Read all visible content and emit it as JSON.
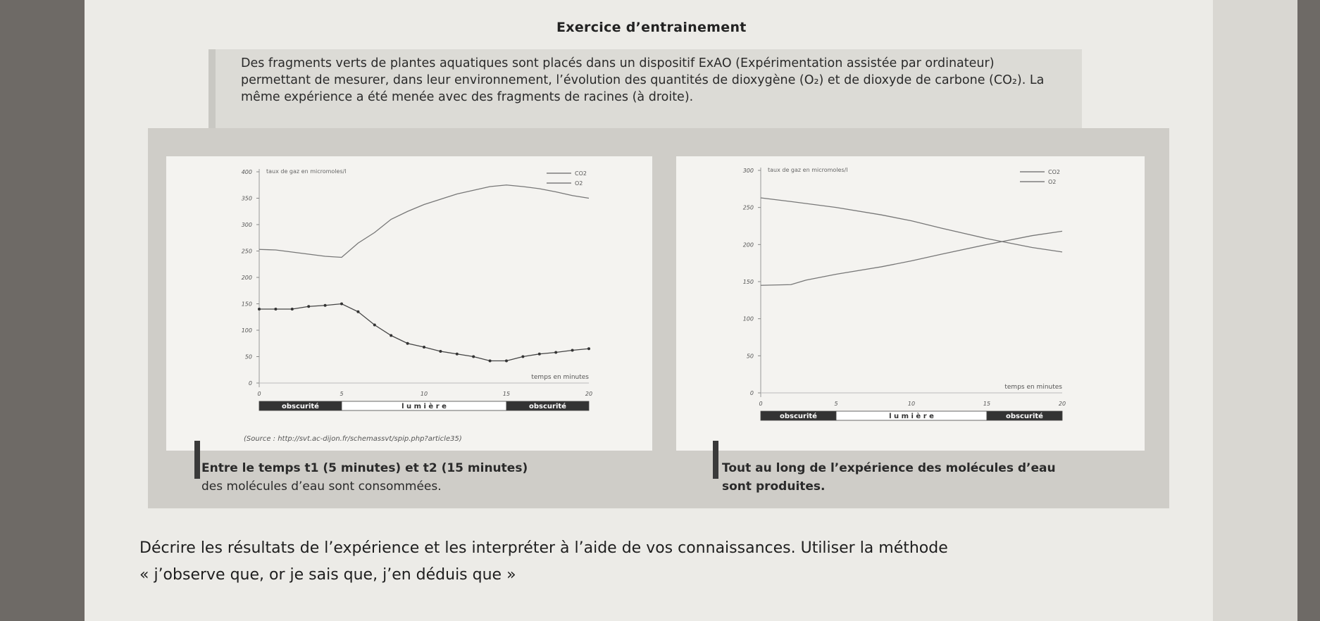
{
  "title": "Exercice d’entrainement",
  "intro": "Des fragments verts de plantes aquatiques sont placés dans un dispositif ExAO (Expérimentation assistée par ordinateur) permettant de mesurer, dans leur environnement, l’évolution des quantités de dioxygène (O₂) et de dioxyde de carbone (CO₂). La même expérience a été menée avec des fragments de racines (à droite).",
  "source": "(Source : http://svt.ac-dijon.fr/schemassvt/spip.php?article35)",
  "caption_left": [
    "Entre le temps t1 (5 minutes) et t2 (15 minutes)",
    "des molécules d’eau sont consommées."
  ],
  "caption_right": [
    "Tout au long de l’expérience des molécules d’eau",
    "sont produites."
  ],
  "question": [
    "Décrire les résultats de l’expérience et les interpréter à l’aide de vos connaissances. Utiliser la méthode",
    "« j’observe que, or je sais que, j’en déduis que »"
  ],
  "chart_data": [
    {
      "type": "line",
      "ylabel": "taux de gaz en micromoles/l",
      "xlabel": "temps en minutes",
      "ylim": [
        0,
        400
      ],
      "xlim": [
        0,
        20
      ],
      "y_ticks": [
        0,
        50,
        100,
        150,
        200,
        250,
        300,
        350,
        400
      ],
      "x_ticks": [
        0,
        5,
        10,
        15,
        20
      ],
      "legend": [
        "CO2",
        "O2"
      ],
      "legend_position": "top-right",
      "phases": [
        {
          "label": "obscurité",
          "from": 0,
          "to": 5,
          "color": "#333333"
        },
        {
          "label": "l u m i è r e",
          "from": 5,
          "to": 15,
          "color": "#ffffff"
        },
        {
          "label": "obscurité",
          "from": 15,
          "to": 20,
          "color": "#333333"
        }
      ],
      "series": [
        {
          "name": "CO2",
          "marker": true,
          "x": [
            0,
            1,
            2,
            3,
            4,
            5,
            6,
            7,
            8,
            9,
            10,
            11,
            12,
            13,
            14,
            15,
            16,
            17,
            18,
            19,
            20
          ],
          "y": [
            140,
            140,
            140,
            145,
            147,
            150,
            135,
            110,
            90,
            75,
            68,
            60,
            55,
            50,
            42,
            42,
            50,
            55,
            58,
            62,
            65
          ]
        },
        {
          "name": "O2",
          "marker": false,
          "x": [
            0,
            1,
            2,
            3,
            4,
            5,
            6,
            7,
            8,
            9,
            10,
            11,
            12,
            13,
            14,
            15,
            16,
            17,
            18,
            19,
            20
          ],
          "y": [
            253,
            252,
            248,
            244,
            240,
            238,
            265,
            285,
            310,
            325,
            338,
            348,
            358,
            365,
            372,
            375,
            372,
            368,
            362,
            355,
            350
          ]
        }
      ]
    },
    {
      "type": "line",
      "ylabel": "taux de gaz en micromoles/l",
      "xlabel": "temps en minutes",
      "ylim": [
        0,
        300
      ],
      "xlim": [
        0,
        20
      ],
      "y_ticks": [
        0,
        50,
        100,
        150,
        200,
        250,
        300
      ],
      "x_ticks": [
        0,
        5,
        10,
        15,
        20
      ],
      "legend": [
        "CO2",
        "O2"
      ],
      "legend_position": "top-right",
      "phases": [
        {
          "label": "obscurité",
          "from": 0,
          "to": 5,
          "color": "#333333"
        },
        {
          "label": "l u m i è r e",
          "from": 5,
          "to": 15,
          "color": "#ffffff"
        },
        {
          "label": "obscurité",
          "from": 15,
          "to": 20,
          "color": "#333333"
        }
      ],
      "series": [
        {
          "name": "CO2",
          "marker": false,
          "x": [
            0,
            2,
            3,
            5,
            8,
            10,
            12,
            15,
            18,
            20
          ],
          "y": [
            145,
            146,
            152,
            160,
            170,
            178,
            187,
            200,
            212,
            218
          ]
        },
        {
          "name": "O2",
          "marker": false,
          "x": [
            0,
            2,
            5,
            8,
            10,
            12,
            15,
            18,
            20
          ],
          "y": [
            263,
            258,
            250,
            240,
            232,
            222,
            208,
            196,
            190
          ]
        }
      ]
    }
  ]
}
